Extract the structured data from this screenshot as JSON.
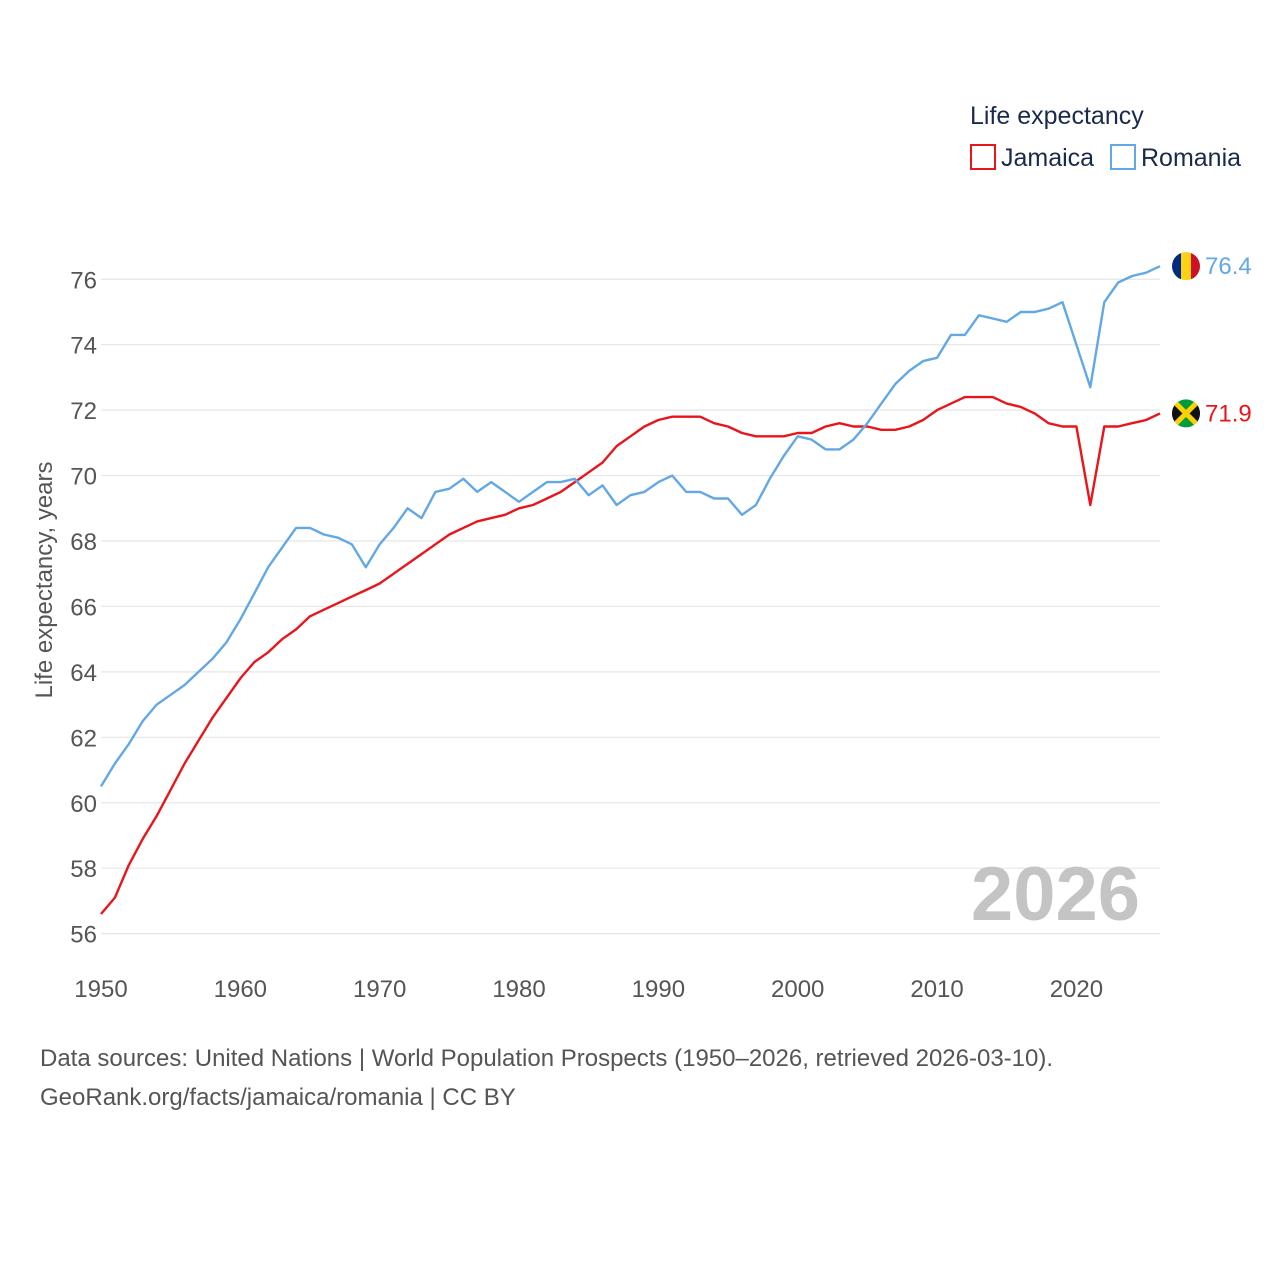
{
  "chart_data": {
    "type": "line",
    "title": "2026",
    "legend_title": "Life expectancy",
    "ylabel": "Life expectancy, years",
    "xlabel": "",
    "xlim": [
      1950,
      2026
    ],
    "ylim": [
      55.5,
      77.2
    ],
    "xticks": [
      1950,
      1960,
      1970,
      1980,
      1990,
      2000,
      2010,
      2020
    ],
    "yticks": [
      56,
      58,
      60,
      62,
      64,
      66,
      68,
      70,
      72,
      74,
      76
    ],
    "x": [
      1950,
      1951,
      1952,
      1953,
      1954,
      1955,
      1956,
      1957,
      1958,
      1959,
      1960,
      1961,
      1962,
      1963,
      1964,
      1965,
      1966,
      1967,
      1968,
      1969,
      1970,
      1971,
      1972,
      1973,
      1974,
      1975,
      1976,
      1977,
      1978,
      1979,
      1980,
      1981,
      1982,
      1983,
      1984,
      1985,
      1986,
      1987,
      1988,
      1989,
      1990,
      1991,
      1992,
      1993,
      1994,
      1995,
      1996,
      1997,
      1998,
      1999,
      2000,
      2001,
      2002,
      2003,
      2004,
      2005,
      2006,
      2007,
      2008,
      2009,
      2010,
      2011,
      2012,
      2013,
      2014,
      2015,
      2016,
      2017,
      2018,
      2019,
      2020,
      2021,
      2022,
      2023,
      2024,
      2025,
      2026
    ],
    "series": [
      {
        "name": "Jamaica",
        "color": "#e8161b",
        "end_label": "71.9",
        "flag": "jamaica-flag",
        "values": [
          56.6,
          57.1,
          58.1,
          58.9,
          59.6,
          60.4,
          61.2,
          61.9,
          62.6,
          63.2,
          63.8,
          64.3,
          64.6,
          65.0,
          65.3,
          65.7,
          65.9,
          66.1,
          66.3,
          66.5,
          66.7,
          67.0,
          67.3,
          67.6,
          67.9,
          68.2,
          68.4,
          68.6,
          68.7,
          68.8,
          69.0,
          69.1,
          69.3,
          69.5,
          69.8,
          70.1,
          70.4,
          70.9,
          71.2,
          71.5,
          71.7,
          71.8,
          71.8,
          71.8,
          71.6,
          71.5,
          71.3,
          71.2,
          71.2,
          71.2,
          71.3,
          71.3,
          71.5,
          71.6,
          71.5,
          71.5,
          71.4,
          71.4,
          71.5,
          71.7,
          72.0,
          72.2,
          72.4,
          72.4,
          72.4,
          72.2,
          72.1,
          71.9,
          71.6,
          71.5,
          71.5,
          69.1,
          71.5,
          71.5,
          71.6,
          71.7,
          71.9
        ]
      },
      {
        "name": "Romania",
        "color": "#62a8e5",
        "end_label": "76.4",
        "flag": "romania-flag",
        "values": [
          60.5,
          61.2,
          61.8,
          62.5,
          63.0,
          63.3,
          63.6,
          64.0,
          64.4,
          64.9,
          65.6,
          66.4,
          67.2,
          67.8,
          68.4,
          68.4,
          68.2,
          68.1,
          67.9,
          67.2,
          67.9,
          68.4,
          69.0,
          68.7,
          69.5,
          69.6,
          69.9,
          69.5,
          69.8,
          69.5,
          69.2,
          69.5,
          69.8,
          69.8,
          69.9,
          69.4,
          69.7,
          69.1,
          69.4,
          69.5,
          69.8,
          70.0,
          69.5,
          69.5,
          69.3,
          69.3,
          68.8,
          69.1,
          69.9,
          70.6,
          71.2,
          71.1,
          70.8,
          70.8,
          71.1,
          71.6,
          72.2,
          72.8,
          73.2,
          73.5,
          73.6,
          74.3,
          74.3,
          74.9,
          74.8,
          74.7,
          75.0,
          75.0,
          75.1,
          75.3,
          74.0,
          72.7,
          75.3,
          75.9,
          76.1,
          76.2,
          76.4
        ]
      }
    ]
  },
  "footer": {
    "line1": "Data sources: United Nations | World Population Prospects (1950–2026, retrieved 2026-03-10).",
    "line2": "GeoRank.org/facts/jamaica/romania | CC BY"
  }
}
